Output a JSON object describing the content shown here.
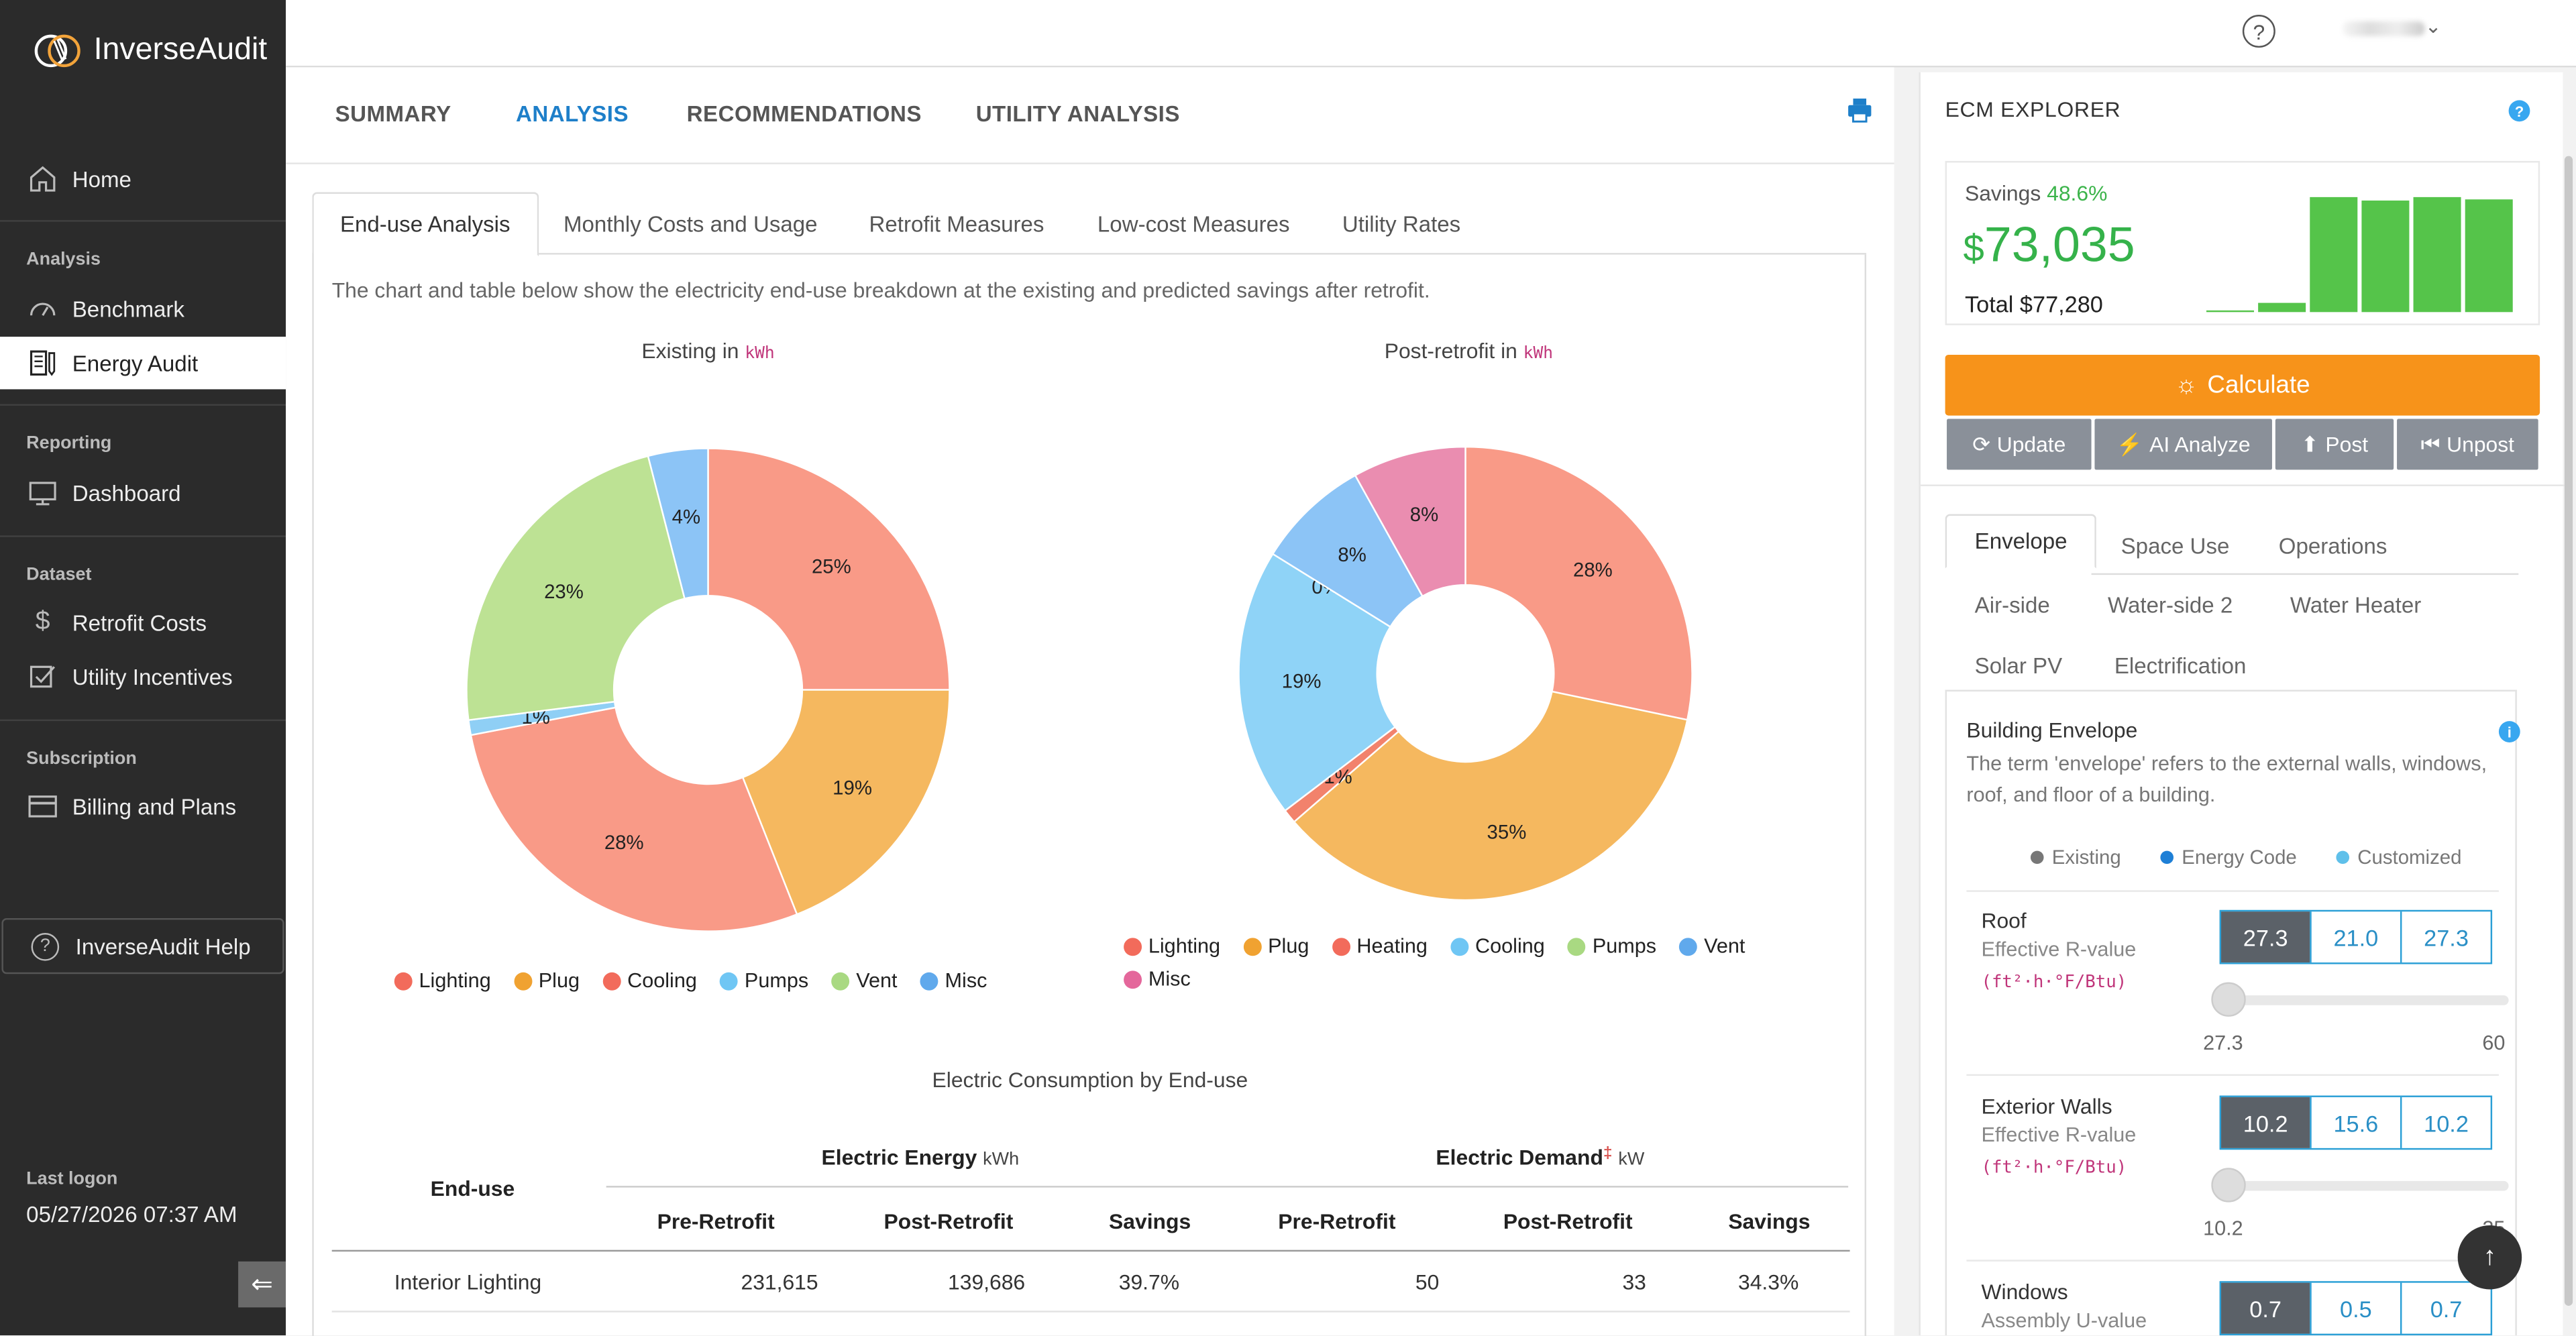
{
  "app": {
    "name": "InverseAudit"
  },
  "sidebar": {
    "home": "Home",
    "sections": [
      {
        "label": "Analysis",
        "items": [
          "Benchmark",
          "Energy Audit"
        ]
      },
      {
        "label": "Reporting",
        "items": [
          "Dashboard"
        ]
      },
      {
        "label": "Dataset",
        "items": [
          "Retrofit Costs",
          "Utility Incentives"
        ]
      },
      {
        "label": "Subscription",
        "items": [
          "Billing and Plans"
        ]
      }
    ],
    "active_item": "Energy Audit",
    "help": "InverseAudit Help",
    "last_logon_label": "Last logon",
    "last_logon_value": "05/27/2026 07:37 AM"
  },
  "topbar": {
    "help_icon": "question-circle-icon",
    "user_menu_icon": "chevron-down-icon"
  },
  "main_tabs": [
    "SUMMARY",
    "ANALYSIS",
    "RECOMMENDATIONS",
    "UTILITY ANALYSIS"
  ],
  "active_main_tab": "ANALYSIS",
  "sub_tabs": [
    "End-use Analysis",
    "Monthly Costs and Usage",
    "Retrofit Measures",
    "Low-cost Measures",
    "Utility Rates"
  ],
  "active_sub_tab": "End-use Analysis",
  "description": "The chart and table below show the electricity end-use breakdown at the existing and predicted savings after retrofit.",
  "chart_data": [
    {
      "type": "pie",
      "title": "Existing in",
      "unit": "kWh",
      "categories": [
        "Lighting",
        "Plug",
        "Cooling",
        "Pumps",
        "Vent",
        "Misc"
      ],
      "values": [
        25,
        19,
        28,
        1,
        23,
        4
      ],
      "labels": [
        "25%",
        "19%",
        "28%",
        "1%",
        "23%",
        "4%"
      ],
      "colors": [
        "#f99a87",
        "#f5b85f",
        "#f99a87",
        "#8fcff5",
        "#bde294",
        "#8cc4f6"
      ],
      "legend_colors": [
        "#f26b5b",
        "#f0a231",
        "#f26b5b",
        "#6fc6f4",
        "#a9d982",
        "#60a9ec"
      ]
    },
    {
      "type": "pie",
      "title": "Post-retrofit in",
      "unit": "kWh",
      "categories": [
        "Lighting",
        "Plug",
        "Heating",
        "Cooling",
        "Pumps",
        "Vent",
        "Misc"
      ],
      "values": [
        28,
        35,
        1,
        19,
        0,
        8,
        8
      ],
      "labels": [
        "28%",
        "35%",
        "1%",
        "19%",
        "0%",
        "8%",
        "8%"
      ],
      "colors": [
        "#f99a87",
        "#f5b85f",
        "#f2826c",
        "#8fd3f7",
        "#bde294",
        "#8cc4f6",
        "#ea8db0"
      ],
      "legend_colors": [
        "#f26b5b",
        "#f0a231",
        "#f26b5b",
        "#6fc6f4",
        "#a9d982",
        "#60a9ec",
        "#e4679b"
      ]
    }
  ],
  "table": {
    "title": "Electric Consumption by End-use",
    "enduse_header": "End-use",
    "energy_header": "Electric Energy",
    "energy_unit": "kWh",
    "demand_header": "Electric Demand",
    "demand_mark": "‡",
    "demand_unit": "kW",
    "columns": [
      "Pre-Retrofit",
      "Post-Retrofit",
      "Savings",
      "Pre-Retrofit",
      "Post-Retrofit",
      "Savings"
    ],
    "rows": [
      {
        "name": "Interior Lighting",
        "cells": [
          "231,615",
          "139,686",
          "39.7%",
          "50",
          "33",
          "34.3%"
        ]
      }
    ]
  },
  "ecm": {
    "title": "ECM EXPLORER",
    "savings_label": "Savings",
    "savings_pct": "48.6%",
    "savings_currency": "$",
    "savings_value": "73,035",
    "total": "Total $77,280",
    "mini_bars": [
      1,
      8,
      100,
      97,
      100,
      98
    ],
    "calculate": "Calculate",
    "buttons": [
      "Update",
      "AI Analyze",
      "Post",
      "Unpost"
    ],
    "tabs": [
      "Envelope",
      "Space Use",
      "Operations",
      "Air-side",
      "Water-side 2",
      "Water Heater",
      "Solar PV",
      "Electrification"
    ],
    "active_tab": "Envelope",
    "envelope": {
      "title": "Building Envelope",
      "description": "The term 'envelope' refers to the external walls, windows, roof, and floor of a building.",
      "legend": [
        "Existing",
        "Energy Code",
        "Customized"
      ],
      "legend_colors": [
        "#777777",
        "#1e7fd6",
        "#5fc0ea"
      ],
      "properties": [
        {
          "name": "Roof",
          "sub": "Effective R-value",
          "unit": "(ft²·h·°F/Btu)",
          "values": [
            "27.3",
            "21.0",
            "27.3"
          ],
          "slider_min": "27.3",
          "slider_max": "60",
          "slider_level": 0
        },
        {
          "name": "Exterior Walls",
          "sub": "Effective R-value",
          "unit": "(ft²·h·°F/Btu)",
          "values": [
            "10.2",
            "15.6",
            "10.2"
          ],
          "slider_min": "10.2",
          "slider_max": "25",
          "slider_level": 0
        },
        {
          "name": "Windows",
          "sub": "Assembly U-value",
          "values": [
            "0.7",
            "0.5",
            "0.7"
          ]
        }
      ]
    }
  }
}
